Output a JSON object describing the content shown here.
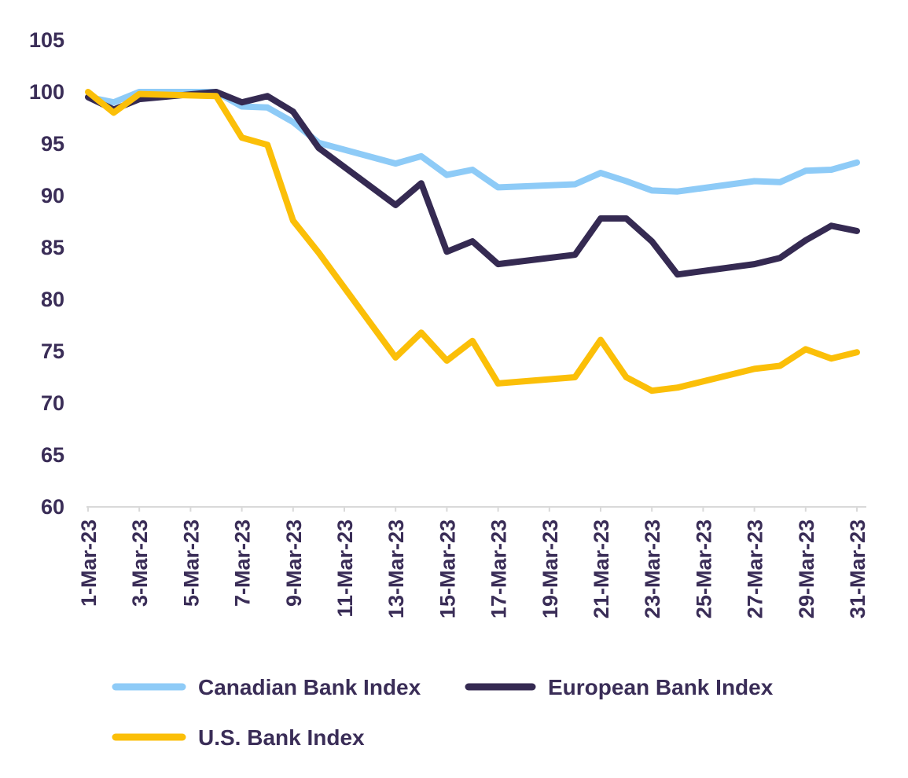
{
  "chart_data": {
    "type": "line",
    "title": "",
    "xlabel": "",
    "ylabel": "",
    "ylim": [
      60,
      105
    ],
    "yticks": [
      "60",
      "65",
      "70",
      "75",
      "80",
      "85",
      "90",
      "95",
      "100",
      "105"
    ],
    "x": [
      "1-Mar-23",
      "2-Mar-23",
      "3-Mar-23",
      "4-Mar-23",
      "5-Mar-23",
      "6-Mar-23",
      "7-Mar-23",
      "8-Mar-23",
      "9-Mar-23",
      "10-Mar-23",
      "11-Mar-23",
      "12-Mar-23",
      "13-Mar-23",
      "14-Mar-23",
      "15-Mar-23",
      "16-Mar-23",
      "17-Mar-23",
      "18-Mar-23",
      "19-Mar-23",
      "20-Mar-23",
      "21-Mar-23",
      "22-Mar-23",
      "23-Mar-23",
      "24-Mar-23",
      "25-Mar-23",
      "26-Mar-23",
      "27-Mar-23",
      "28-Mar-23",
      "29-Mar-23",
      "30-Mar-23",
      "31-Mar-23"
    ],
    "xtick_labels": [
      "1-Mar-23",
      "3-Mar-23",
      "5-Mar-23",
      "7-Mar-23",
      "9-Mar-23",
      "11-Mar-23",
      "13-Mar-23",
      "15-Mar-23",
      "17-Mar-23",
      "19-Mar-23",
      "21-Mar-23",
      "23-Mar-23",
      "25-Mar-23",
      "27-Mar-23",
      "29-Mar-23",
      "31-Mar-23"
    ],
    "grid": false,
    "legend_position": "bottom",
    "series": [
      {
        "name": "Canadian Bank Index",
        "color": "#8ecbf7",
        "points": [
          [
            "1-Mar-23",
            99.5
          ],
          [
            "2-Mar-23",
            99.0
          ],
          [
            "3-Mar-23",
            100.0
          ],
          [
            "6-Mar-23",
            100.0
          ],
          [
            "7-Mar-23",
            98.6
          ],
          [
            "8-Mar-23",
            98.5
          ],
          [
            "9-Mar-23",
            97.1
          ],
          [
            "10-Mar-23",
            95.1
          ],
          [
            "13-Mar-23",
            93.1
          ],
          [
            "14-Mar-23",
            93.8
          ],
          [
            "15-Mar-23",
            92.0
          ],
          [
            "16-Mar-23",
            92.5
          ],
          [
            "17-Mar-23",
            90.8
          ],
          [
            "20-Mar-23",
            91.1
          ],
          [
            "21-Mar-23",
            92.2
          ],
          [
            "22-Mar-23",
            91.4
          ],
          [
            "23-Mar-23",
            90.5
          ],
          [
            "24-Mar-23",
            90.4
          ],
          [
            "27-Mar-23",
            91.4
          ],
          [
            "28-Mar-23",
            91.3
          ],
          [
            "29-Mar-23",
            92.4
          ],
          [
            "30-Mar-23",
            92.5
          ],
          [
            "31-Mar-23",
            93.2
          ]
        ]
      },
      {
        "name": "European Bank Index",
        "color": "#352a52",
        "points": [
          [
            "1-Mar-23",
            99.5
          ],
          [
            "2-Mar-23",
            98.3
          ],
          [
            "3-Mar-23",
            99.3
          ],
          [
            "6-Mar-23",
            100.0
          ],
          [
            "7-Mar-23",
            99.0
          ],
          [
            "8-Mar-23",
            99.6
          ],
          [
            "9-Mar-23",
            98.1
          ],
          [
            "10-Mar-23",
            94.6
          ],
          [
            "13-Mar-23",
            89.1
          ],
          [
            "14-Mar-23",
            91.2
          ],
          [
            "15-Mar-23",
            84.6
          ],
          [
            "16-Mar-23",
            85.6
          ],
          [
            "17-Mar-23",
            83.4
          ],
          [
            "20-Mar-23",
            84.3
          ],
          [
            "21-Mar-23",
            87.8
          ],
          [
            "22-Mar-23",
            87.8
          ],
          [
            "23-Mar-23",
            85.6
          ],
          [
            "24-Mar-23",
            82.4
          ],
          [
            "27-Mar-23",
            83.4
          ],
          [
            "28-Mar-23",
            84.0
          ],
          [
            "29-Mar-23",
            85.7
          ],
          [
            "30-Mar-23",
            87.1
          ],
          [
            "31-Mar-23",
            86.6
          ]
        ]
      },
      {
        "name": "U.S. Bank Index",
        "color": "#fbbf08",
        "points": [
          [
            "1-Mar-23",
            100.0
          ],
          [
            "2-Mar-23",
            98.0
          ],
          [
            "3-Mar-23",
            99.8
          ],
          [
            "6-Mar-23",
            99.6
          ],
          [
            "7-Mar-23",
            95.6
          ],
          [
            "8-Mar-23",
            94.9
          ],
          [
            "9-Mar-23",
            87.6
          ],
          [
            "10-Mar-23",
            84.5
          ],
          [
            "13-Mar-23",
            74.4
          ],
          [
            "14-Mar-23",
            76.8
          ],
          [
            "15-Mar-23",
            74.1
          ],
          [
            "16-Mar-23",
            76.0
          ],
          [
            "17-Mar-23",
            71.9
          ],
          [
            "20-Mar-23",
            72.5
          ],
          [
            "21-Mar-23",
            76.1
          ],
          [
            "22-Mar-23",
            72.5
          ],
          [
            "23-Mar-23",
            71.2
          ],
          [
            "24-Mar-23",
            71.5
          ],
          [
            "27-Mar-23",
            73.3
          ],
          [
            "28-Mar-23",
            73.6
          ],
          [
            "29-Mar-23",
            75.2
          ],
          [
            "30-Mar-23",
            74.3
          ],
          [
            "31-Mar-23",
            74.9
          ]
        ]
      }
    ]
  }
}
